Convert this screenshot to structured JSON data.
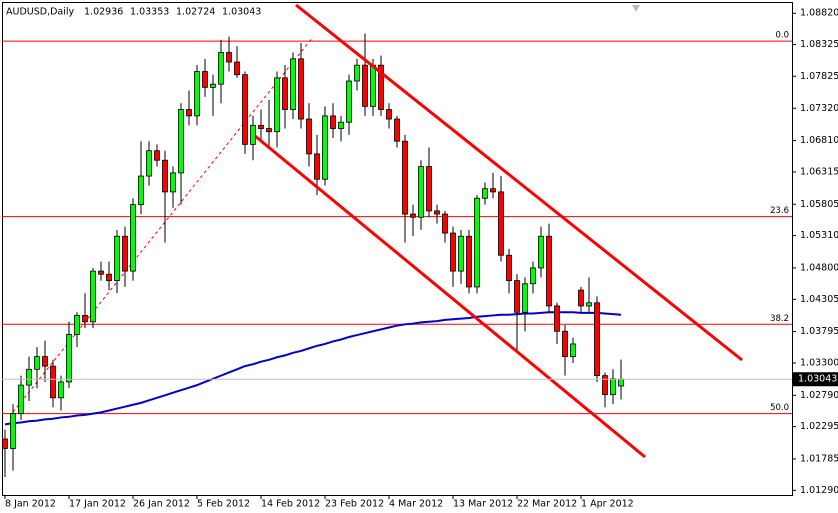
{
  "chart_data": {
    "type": "candlestick",
    "title": "AUDUSD,Daily",
    "categories": [
      "8 Jan 2012",
      null,
      null,
      null,
      null,
      null,
      null,
      null,
      "17 Jan 2012",
      null,
      null,
      null,
      null,
      null,
      null,
      null,
      "26 Jan 2012",
      null,
      null,
      null,
      null,
      null,
      null,
      null,
      "5 Feb 2012",
      null,
      null,
      null,
      null,
      null,
      null,
      null,
      "14 Feb 2012",
      null,
      null,
      null,
      null,
      null,
      null,
      null,
      "23 Feb 2012",
      null,
      null,
      null,
      null,
      null,
      null,
      null,
      "4 Mar 2012",
      null,
      null,
      null,
      null,
      null,
      null,
      null,
      "13 Mar 2012",
      null,
      null,
      null,
      null,
      null,
      null,
      null,
      "22 Mar 2012",
      null,
      null,
      null,
      null,
      null,
      null,
      null,
      "1 Apr 2012",
      null,
      null,
      null,
      null,
      null
    ],
    "open": [
      1.021,
      1.0195,
      1.025,
      1.0295,
      1.032,
      1.034,
      1.0325,
      1.0275,
      1.03,
      1.0375,
      1.0405,
      1.0395,
      1.0475,
      1.047,
      1.046,
      1.053,
      1.0475,
      1.058,
      1.0625,
      1.0665,
      1.065,
      1.06,
      1.063,
      1.073,
      1.072,
      1.079,
      1.0765,
      1.077,
      1.082,
      1.0805,
      1.0785,
      1.0675,
      1.0705,
      1.07,
      1.0695,
      1.078,
      1.073,
      1.081,
      1.0715,
      1.066,
      1.062,
      1.072,
      1.07,
      1.071,
      1.0775,
      1.08,
      1.0735,
      1.08,
      1.073,
      1.0715,
      1.068,
      1.0565,
      1.056,
      1.064,
      1.057,
      1.0565,
      1.0535,
      1.0475,
      1.053,
      1.045,
      1.059,
      1.0605,
      1.06,
      1.05,
      1.046,
      1.041,
      1.0455,
      1.048,
      1.053,
      1.042,
      1.038,
      1.034,
      1.0445,
      1.042,
      1.0425,
      1.031,
      1.028,
      1.02936
    ],
    "high": [
      1.0225,
      1.0265,
      1.031,
      1.034,
      1.0355,
      1.0365,
      1.0335,
      1.031,
      1.0395,
      1.041,
      1.044,
      1.048,
      1.049,
      1.049,
      1.054,
      1.0545,
      1.059,
      1.068,
      1.068,
      1.0675,
      1.0665,
      1.064,
      1.074,
      1.076,
      1.08,
      1.081,
      1.0785,
      1.084,
      1.0845,
      1.083,
      1.079,
      1.072,
      1.073,
      1.0745,
      1.079,
      1.08,
      1.082,
      1.0835,
      1.074,
      1.069,
      1.0735,
      1.074,
      1.072,
      1.0785,
      1.081,
      1.085,
      1.081,
      1.0815,
      1.074,
      1.072,
      1.069,
      1.058,
      1.065,
      1.067,
      1.058,
      1.057,
      1.0545,
      1.054,
      1.054,
      1.0595,
      1.0615,
      1.063,
      1.0625,
      1.051,
      1.047,
      1.0465,
      1.049,
      1.0545,
      1.055,
      1.0425,
      1.039,
      1.037,
      1.045,
      1.0465,
      1.0435,
      1.0315,
      1.032,
      1.03353
    ],
    "low": [
      1.015,
      1.016,
      1.024,
      1.027,
      1.029,
      1.03,
      1.026,
      1.0255,
      1.029,
      1.0355,
      1.0385,
      1.0385,
      1.046,
      1.0445,
      1.044,
      1.045,
      1.046,
      1.0565,
      1.061,
      1.064,
      1.052,
      1.0575,
      1.058,
      1.0705,
      1.0705,
      1.075,
      1.072,
      1.074,
      1.079,
      1.078,
      1.066,
      1.065,
      1.068,
      1.067,
      1.067,
      1.07,
      1.0715,
      1.07,
      1.064,
      1.0595,
      1.061,
      1.0685,
      1.068,
      1.069,
      1.076,
      1.072,
      1.072,
      1.072,
      1.07,
      1.067,
      1.052,
      1.053,
      1.054,
      1.056,
      1.055,
      1.052,
      1.045,
      1.0455,
      1.044,
      1.044,
      1.058,
      1.059,
      1.049,
      1.044,
      1.035,
      1.038,
      1.044,
      1.0465,
      1.041,
      1.036,
      1.031,
      1.033,
      1.041,
      1.041,
      1.03,
      1.026,
      1.0265,
      1.02724
    ],
    "close": [
      1.0195,
      1.025,
      1.0295,
      1.032,
      1.034,
      1.0325,
      1.0275,
      1.03,
      1.0375,
      1.0405,
      1.0395,
      1.0475,
      1.047,
      1.046,
      1.053,
      1.0475,
      1.058,
      1.0625,
      1.0665,
      1.065,
      1.06,
      1.063,
      1.073,
      1.072,
      1.079,
      1.0765,
      1.077,
      1.082,
      1.0805,
      1.0785,
      1.0675,
      1.0705,
      1.07,
      1.0695,
      1.078,
      1.073,
      1.081,
      1.0715,
      1.066,
      1.062,
      1.072,
      1.07,
      1.071,
      1.0775,
      1.08,
      1.0735,
      1.08,
      1.073,
      1.0715,
      1.068,
      1.0565,
      1.056,
      1.064,
      1.057,
      1.0565,
      1.0535,
      1.0475,
      1.053,
      1.045,
      1.059,
      1.0605,
      1.06,
      1.05,
      1.046,
      1.041,
      1.0455,
      1.048,
      1.053,
      1.042,
      1.038,
      1.034,
      1.036,
      1.042,
      1.0425,
      1.031,
      1.028,
      1.0305,
      1.03043
    ],
    "up_color": "#00ff00",
    "down_color": "#ff0000",
    "moving_average": {
      "color": "#0000cc",
      "values": [
        1.0233,
        1.0235,
        1.0236,
        1.0238,
        1.0239,
        1.0241,
        1.0242,
        1.0244,
        1.0245,
        1.0247,
        1.0248,
        1.025,
        1.0252,
        1.0255,
        1.0258,
        1.0261,
        1.0264,
        1.0267,
        1.0271,
        1.0275,
        1.0279,
        1.0283,
        1.0287,
        1.0291,
        1.0295,
        1.03,
        1.0305,
        1.031,
        1.0315,
        1.032,
        1.0325,
        1.0328,
        1.0332,
        1.0335,
        1.0339,
        1.0342,
        1.0346,
        1.0349,
        1.0353,
        1.0357,
        1.036,
        1.0364,
        1.0367,
        1.0371,
        1.0374,
        1.0377,
        1.038,
        1.0383,
        1.0386,
        1.0389,
        1.0391,
        1.0392,
        1.0394,
        1.0395,
        1.0396,
        1.0398,
        1.0399,
        1.04,
        1.0401,
        1.0403,
        1.0404,
        1.0405,
        1.0406,
        1.0406,
        1.0407,
        1.0408,
        1.0408,
        1.0409,
        1.041,
        1.041,
        1.041,
        1.041,
        1.0409,
        1.0409,
        1.0409,
        1.0408,
        1.0407,
        1.0406
      ]
    },
    "fib_levels": [
      {
        "price": 1.0838,
        "label": "0.0"
      },
      {
        "price": 1.0561,
        "label": "23.6"
      },
      {
        "price": 1.0391,
        "label": "38.2"
      },
      {
        "price": 1.025,
        "label": "50.0"
      }
    ],
    "ylim": [
      1.012,
      1.0895
    ],
    "yticks": [
      {
        "value": 1.0882,
        "label": "1.08820"
      },
      {
        "value": 1.08325,
        "label": "1.08325"
      },
      {
        "value": 1.07825,
        "label": "1.07825"
      },
      {
        "value": 1.0732,
        "label": "1.07320"
      },
      {
        "value": 1.0681,
        "label": "1.06810"
      },
      {
        "value": 1.06315,
        "label": "1.06315"
      },
      {
        "value": 1.05805,
        "label": "1.05805"
      },
      {
        "value": 1.0531,
        "label": "1.05310"
      },
      {
        "value": 1.048,
        "label": "1.04800"
      },
      {
        "value": 1.04305,
        "label": "1.04305"
      },
      {
        "value": 1.03795,
        "label": "1.03795"
      },
      {
        "value": 1.033,
        "label": "1.03300"
      },
      {
        "value": 1.0279,
        "label": "1.02790"
      },
      {
        "value": 1.02295,
        "label": "1.02295"
      },
      {
        "value": 1.01785,
        "label": "1.01785"
      },
      {
        "value": 1.0129,
        "label": "1.01290"
      }
    ]
  }
}
